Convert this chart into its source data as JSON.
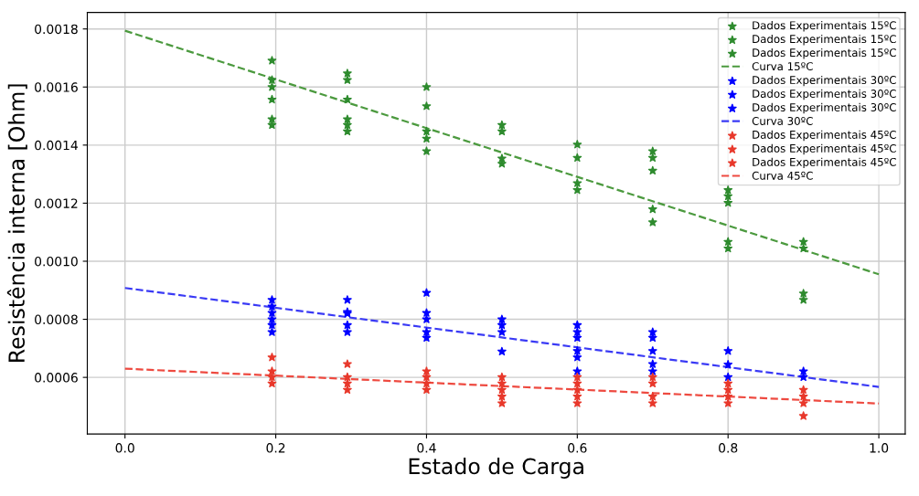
{
  "chart_data": {
    "type": "scatter",
    "xlabel": "Estado de Carga",
    "ylabel": "Resistência interna [Ohm]",
    "xlim": [
      -0.05,
      1.035
    ],
    "ylim": [
      0.000405,
      0.001857
    ],
    "xticks": [
      {
        "value": 0,
        "label": "0.0"
      },
      {
        "value": 0.2,
        "label": "0.2"
      },
      {
        "value": 0.4,
        "label": "0.4"
      },
      {
        "value": 0.6,
        "label": "0.6"
      },
      {
        "value": 0.8,
        "label": "0.8"
      },
      {
        "value": 1.0,
        "label": "1.0"
      }
    ],
    "yticks": [
      {
        "value": 0.0006,
        "label": "0.0006"
      },
      {
        "value": 0.0008,
        "label": "0.0008"
      },
      {
        "value": 0.001,
        "label": "0.0010"
      },
      {
        "value": 0.0012,
        "label": "0.0012"
      },
      {
        "value": 0.0014,
        "label": "0.0014"
      },
      {
        "value": 0.0016,
        "label": "0.0016"
      },
      {
        "value": 0.0018,
        "label": "0.0018"
      }
    ],
    "grid": true,
    "legend": "top right",
    "series": [
      {
        "name": "Dados Experimentais 15ºC",
        "marker": "star",
        "color": "#2e8b2e",
        "x": [
          0.195,
          0.195,
          0.295,
          0.295,
          0.4,
          0.4,
          0.5,
          0.5,
          0.6,
          0.6,
          0.7,
          0.7,
          0.8,
          0.8,
          0.9,
          0.9
        ],
        "values": [
          0.001691,
          0.001557,
          0.001647,
          0.001489,
          0.0016,
          0.001422,
          0.001469,
          0.001336,
          0.001402,
          0.001245,
          0.001379,
          0.001179,
          0.001245,
          0.001067,
          0.001067,
          0.000867
        ]
      },
      {
        "name": "Dados Experimentais 15ºC",
        "marker": "star",
        "color": "#2e8b2e",
        "x": [
          0.195,
          0.195,
          0.295,
          0.295,
          0.4,
          0.4,
          0.5,
          0.6,
          0.7,
          0.7,
          0.8,
          0.8,
          0.9
        ],
        "values": [
          0.001624,
          0.001489,
          0.001624,
          0.001469,
          0.001534,
          0.001379,
          0.001447,
          0.001356,
          0.001356,
          0.001134,
          0.001224,
          0.001044,
          0.001044
        ]
      },
      {
        "name": "Dados Experimentais 15ºC",
        "marker": "star",
        "color": "#2e8b2e",
        "x": [
          0.195,
          0.195,
          0.295,
          0.295,
          0.4,
          0.5,
          0.6,
          0.7,
          0.8,
          0.9
        ],
        "values": [
          0.0016,
          0.001469,
          0.001557,
          0.001447,
          0.001447,
          0.001354,
          0.001269,
          0.001312,
          0.001201,
          0.000889
        ]
      },
      {
        "name": "Curva 15ºC",
        "type": "line",
        "line_style": "dashed",
        "color": "#4c9a3f",
        "x": [
          0,
          1.0
        ],
        "values": [
          0.001794,
          0.000955
        ]
      },
      {
        "name": "Dados Experimentais 30ºC",
        "marker": "star",
        "color": "#0000ff",
        "x": [
          0.195,
          0.195,
          0.295,
          0.295,
          0.4,
          0.4,
          0.5,
          0.5,
          0.6,
          0.6,
          0.7,
          0.7,
          0.8,
          0.9
        ],
        "values": [
          0.000867,
          0.0008,
          0.000867,
          0.00078,
          0.000891,
          0.000756,
          0.0008,
          0.000689,
          0.00078,
          0.000691,
          0.000756,
          0.000646,
          0.000691,
          0.000621
        ]
      },
      {
        "name": "Dados Experimentais 30ºC",
        "marker": "star",
        "color": "#0000ff",
        "x": [
          0.195,
          0.195,
          0.295,
          0.295,
          0.4,
          0.4,
          0.5,
          0.6,
          0.6,
          0.7,
          0.7,
          0.8,
          0.9
        ],
        "values": [
          0.000844,
          0.00078,
          0.000825,
          0.000756,
          0.000822,
          0.000736,
          0.00078,
          0.000756,
          0.000669,
          0.000736,
          0.000621,
          0.000644,
          0.000601
        ]
      },
      {
        "name": "Dados Experimentais 30ºC",
        "marker": "star",
        "color": "#0000ff",
        "x": [
          0.195,
          0.195,
          0.295,
          0.4,
          0.5,
          0.6,
          0.6,
          0.7,
          0.8
        ],
        "values": [
          0.000822,
          0.000756,
          0.00082,
          0.0008,
          0.000756,
          0.000736,
          0.000621,
          0.000691,
          0.000601
        ]
      },
      {
        "name": "Curva 30ºC",
        "type": "line",
        "line_style": "dashed",
        "color": "#3a3af5",
        "x": [
          0,
          1.0
        ],
        "values": [
          0.000908,
          0.000567
        ]
      },
      {
        "name": "Dados Experimentais 45ºC",
        "marker": "star",
        "color": "#e8382b",
        "x": [
          0.195,
          0.195,
          0.295,
          0.295,
          0.4,
          0.4,
          0.5,
          0.5,
          0.6,
          0.6,
          0.7,
          0.7,
          0.8,
          0.8,
          0.9,
          0.9
        ],
        "values": [
          0.000669,
          0.000579,
          0.000646,
          0.000557,
          0.000621,
          0.000557,
          0.000601,
          0.000534,
          0.000601,
          0.000534,
          0.000601,
          0.000511,
          0.000579,
          0.000511,
          0.000557,
          0.000467
        ]
      },
      {
        "name": "Dados Experimentais 45ºC",
        "marker": "star",
        "color": "#e8382b",
        "x": [
          0.195,
          0.295,
          0.4,
          0.5,
          0.5,
          0.6,
          0.6,
          0.7,
          0.8,
          0.9
        ],
        "values": [
          0.000621,
          0.000601,
          0.000601,
          0.000579,
          0.000511,
          0.000579,
          0.000511,
          0.000579,
          0.000557,
          0.000534
        ]
      },
      {
        "name": "Dados Experimentais 45ºC",
        "marker": "star",
        "color": "#e8382b",
        "x": [
          0.195,
          0.295,
          0.4,
          0.5,
          0.6,
          0.7,
          0.8,
          0.9
        ],
        "values": [
          0.000601,
          0.000579,
          0.000579,
          0.000557,
          0.000557,
          0.000534,
          0.000534,
          0.000511
        ]
      },
      {
        "name": "Curva 45ºC",
        "type": "line",
        "line_style": "dashed",
        "color": "#ee4a40",
        "x": [
          0,
          1.0
        ],
        "values": [
          0.00063,
          0.00051
        ]
      }
    ]
  }
}
